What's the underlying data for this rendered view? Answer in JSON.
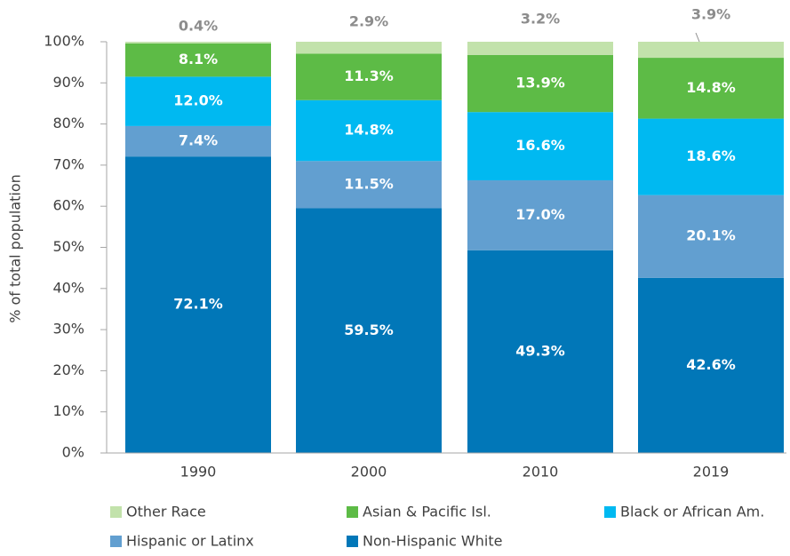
{
  "chart_data": {
    "type": "stacked_bar",
    "y_label": "% of total population",
    "categories": [
      "1990",
      "2000",
      "2010",
      "2019"
    ],
    "series": [
      {
        "name": "Other Race",
        "color": "#c2e2ab",
        "values": [
          0.4,
          2.9,
          3.2,
          3.9
        ],
        "value_labels": [
          "0.4%",
          "2.9%",
          "3.2%",
          "3.9%"
        ]
      },
      {
        "name": "Asian & Pacific Isl.",
        "color": "#5dbb46",
        "values": [
          8.1,
          11.3,
          13.9,
          14.8
        ],
        "value_labels": [
          "8.1%",
          "11.3%",
          "13.9%",
          "14.8%"
        ]
      },
      {
        "name": "Black or African Am.",
        "color": "#00b9f1",
        "values": [
          12.0,
          14.8,
          16.6,
          18.6
        ],
        "value_labels": [
          "12.0%",
          "14.8%",
          "16.6%",
          "18.6%"
        ]
      },
      {
        "name": "Hispanic or Latinx",
        "color": "#629fd0",
        "values": [
          7.4,
          11.5,
          17.0,
          20.1
        ],
        "value_labels": [
          "7.4%",
          "11.5%",
          "17.0%",
          "20.1%"
        ]
      },
      {
        "name": "Non-Hispanic White",
        "color": "#0177b8",
        "values": [
          72.1,
          59.5,
          49.3,
          42.6
        ],
        "value_labels": [
          "72.1%",
          "59.5%",
          "49.3%",
          "42.6%"
        ]
      }
    ],
    "ylim": [
      0,
      100
    ],
    "yticks": [
      {
        "value": 0,
        "label": "0%"
      },
      {
        "value": 10,
        "label": "10%"
      },
      {
        "value": 20,
        "label": "20%"
      },
      {
        "value": 30,
        "label": "30%"
      },
      {
        "value": 40,
        "label": "40%"
      },
      {
        "value": 50,
        "label": "50%"
      },
      {
        "value": 60,
        "label": "60%"
      },
      {
        "value": 70,
        "label": "70%"
      },
      {
        "value": 80,
        "label": "80%"
      },
      {
        "value": 90,
        "label": "90%"
      },
      {
        "value": 100,
        "label": "100%"
      }
    ]
  }
}
